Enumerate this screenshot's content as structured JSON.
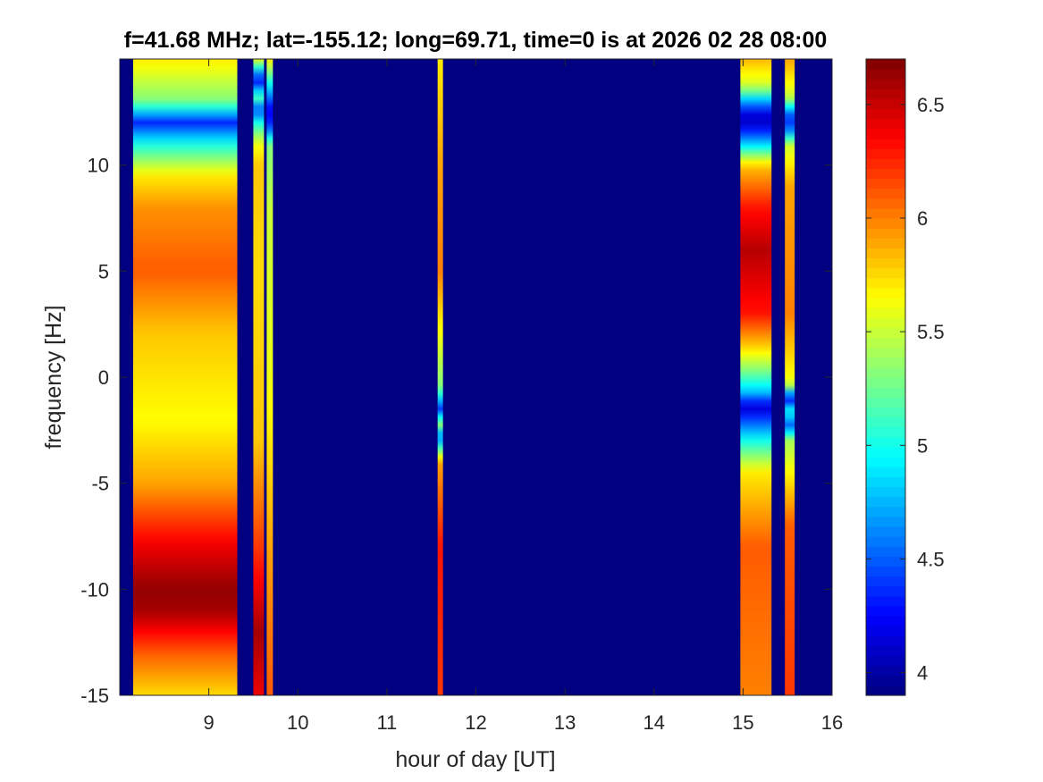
{
  "chart_data": {
    "type": "heatmap",
    "title": "f=41.68 MHz;  lat=-155.12; long=69.71, time=0 is at 2026 02 28 08:00",
    "xlabel": "hour of day [UT]",
    "ylabel": "frequency [Hz]",
    "xlim": [
      8,
      16
    ],
    "ylim": [
      -15,
      15
    ],
    "xticks": [
      "9",
      "10",
      "11",
      "12",
      "13",
      "14",
      "15",
      "16"
    ],
    "yticks": [
      "-15",
      "-10",
      "-5",
      "0",
      "5",
      "10"
    ],
    "colormap": "jet",
    "colorbar": {
      "range": [
        3.9,
        6.7
      ],
      "ticks": [
        "4",
        "4.5",
        "5",
        "5.5",
        "6",
        "6.5"
      ]
    },
    "background_value": 3.9,
    "bands": [
      {
        "x": [
          8.15,
          9.32
        ],
        "profile": [
          [
            -15,
            5.75
          ],
          [
            -13,
            6.1
          ],
          [
            -11,
            6.6
          ],
          [
            -10,
            6.65
          ],
          [
            -8,
            6.4
          ],
          [
            -5,
            5.9
          ],
          [
            -2,
            5.65
          ],
          [
            2,
            5.8
          ],
          [
            5,
            6.1
          ],
          [
            8,
            5.95
          ],
          [
            9.5,
            5.7
          ],
          [
            11,
            5.0
          ],
          [
            12,
            4.35
          ],
          [
            13,
            5.3
          ],
          [
            15,
            5.7
          ]
        ]
      },
      {
        "x": [
          9.5,
          9.62
        ],
        "profile": [
          [
            -15,
            6.4
          ],
          [
            -12,
            6.6
          ],
          [
            -8,
            6.2
          ],
          [
            -3,
            5.8
          ],
          [
            5,
            5.75
          ],
          [
            10,
            5.8
          ],
          [
            11,
            5.6
          ],
          [
            12,
            5.0
          ],
          [
            12.6,
            4.4
          ],
          [
            13.2,
            5.2
          ],
          [
            14,
            4.2
          ],
          [
            15,
            5.6
          ]
        ]
      },
      {
        "x": [
          9.65,
          9.72
        ],
        "profile": [
          [
            -15,
            6.1
          ],
          [
            -8,
            5.9
          ],
          [
            0,
            5.6
          ],
          [
            8,
            5.5
          ],
          [
            11,
            5.3
          ],
          [
            11.8,
            4.4
          ],
          [
            12.6,
            4.2
          ],
          [
            15,
            5.7
          ]
        ]
      },
      {
        "x": [
          11.57,
          11.63
        ],
        "profile": [
          [
            -15,
            6.2
          ],
          [
            -8,
            6.3
          ],
          [
            -4,
            5.9
          ],
          [
            -2.8,
            4.5
          ],
          [
            -2.2,
            5.4
          ],
          [
            -1.5,
            4.4
          ],
          [
            -0.5,
            5.3
          ],
          [
            5,
            6.0
          ],
          [
            10,
            5.9
          ],
          [
            15,
            5.7
          ]
        ]
      },
      {
        "x": [
          14.97,
          15.32
        ],
        "profile": [
          [
            -15,
            6.0
          ],
          [
            -8,
            6.1
          ],
          [
            -4.5,
            5.7
          ],
          [
            -3,
            5.0
          ],
          [
            -2.3,
            4.6
          ],
          [
            -1.4,
            4.1
          ],
          [
            -0.7,
            4.8
          ],
          [
            0.3,
            5.3
          ],
          [
            1.5,
            5.8
          ],
          [
            3,
            6.3
          ],
          [
            6,
            6.55
          ],
          [
            8,
            6.3
          ],
          [
            10,
            5.8
          ],
          [
            10.8,
            5.0
          ],
          [
            11.5,
            4.4
          ],
          [
            12.2,
            4.0
          ],
          [
            13,
            4.7
          ],
          [
            13.7,
            5.5
          ],
          [
            15,
            5.85
          ]
        ]
      },
      {
        "x": [
          15.47,
          15.58
        ],
        "profile": [
          [
            -15,
            6.2
          ],
          [
            -7,
            6.1
          ],
          [
            -3,
            5.4
          ],
          [
            -2.3,
            4.5
          ],
          [
            -1.6,
            5.0
          ],
          [
            -1.0,
            4.2
          ],
          [
            -0.3,
            5.6
          ],
          [
            3,
            6.0
          ],
          [
            9,
            5.9
          ],
          [
            11,
            5.5
          ],
          [
            11.5,
            4.7
          ],
          [
            12.2,
            4.3
          ],
          [
            13.2,
            5.5
          ],
          [
            15,
            5.9
          ]
        ]
      }
    ]
  }
}
